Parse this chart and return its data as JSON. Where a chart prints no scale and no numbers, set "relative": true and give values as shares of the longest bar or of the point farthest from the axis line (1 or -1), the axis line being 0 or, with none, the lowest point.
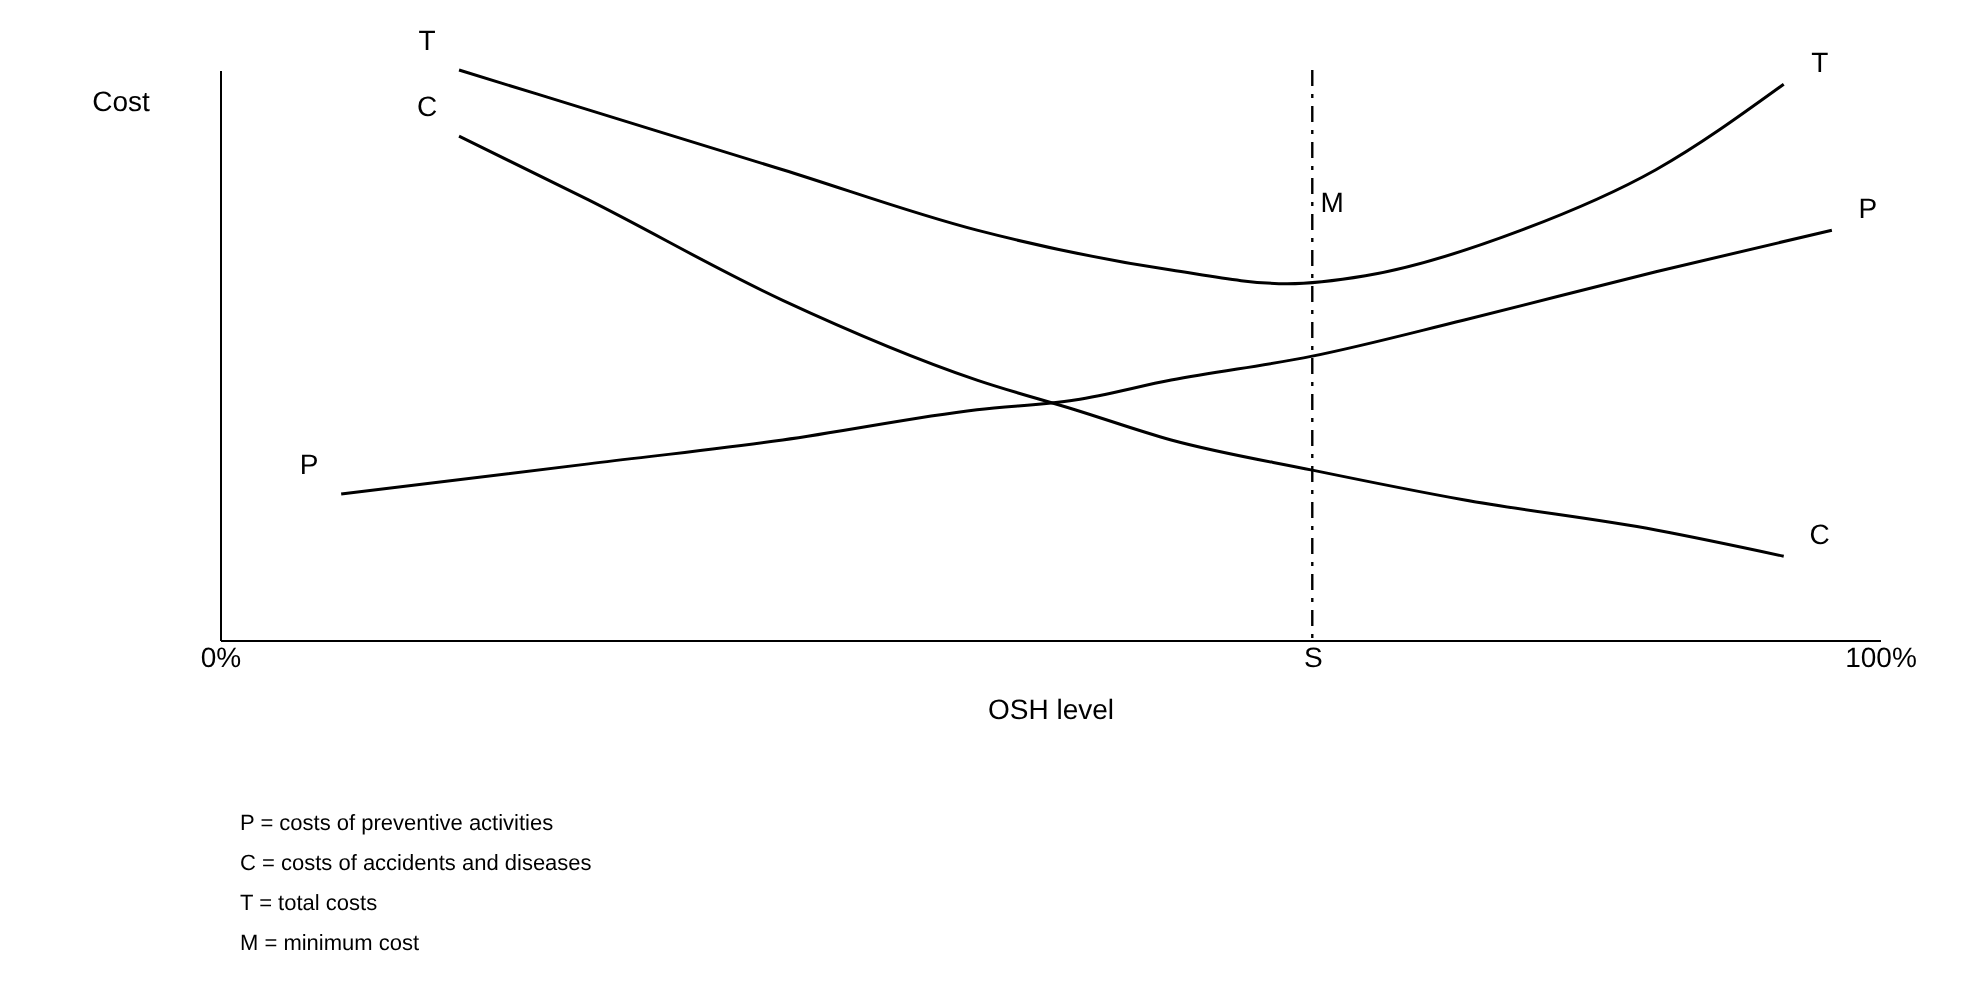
{
  "chart_data": {
    "type": "line",
    "relative": true,
    "xlabel": "OSH level",
    "ylabel": "Cost",
    "xlim": [
      0,
      100
    ],
    "xticks": [
      {
        "value": 0,
        "label": "0%"
      },
      {
        "value": 65.8,
        "label": "S"
      },
      {
        "value": 100,
        "label": "100%"
      }
    ],
    "series": [
      {
        "name": "T",
        "color": "#000000",
        "x": [
          14.4,
          22.2,
          33.9,
          45.6,
          57.3,
          64.3,
          69.0,
          78.4,
          86.5,
          94.2
        ],
        "values": [
          1,
          0.93,
          0.825,
          0.719,
          0.649,
          0.625,
          0.639,
          0.719,
          0.825,
          0.975
        ]
      },
      {
        "name": "C",
        "color": "#000000",
        "x": [
          14.4,
          22.2,
          33.9,
          45.6,
          51.5,
          57.3,
          65.8,
          74.9,
          86.5,
          94.2
        ],
        "values": [
          0.884,
          0.772,
          0.596,
          0.456,
          0.404,
          0.351,
          0.298,
          0.246,
          0.193,
          0.147
        ]
      },
      {
        "name": "P",
        "color": "#000000",
        "x": [
          7.3,
          22.2,
          33.9,
          45.6,
          51.5,
          57.3,
          65.8,
          74.9,
          86.5,
          97.1
        ],
        "values": [
          0.256,
          0.309,
          0.351,
          0.404,
          0.421,
          0.456,
          0.498,
          0.561,
          0.646,
          0.719
        ]
      }
    ],
    "ref_lines": [
      {
        "axis": "x",
        "value": 65.8,
        "line_style": "dashed",
        "color": "#000000"
      }
    ],
    "annotations": [
      {
        "text": "M",
        "x": 65.8,
        "y": 0.625
      },
      "P = costs of preventive activities",
      "C = costs of accidents and diseases",
      "T = total costs",
      "M = minimum cost"
    ],
    "grid": false,
    "legend": false,
    "line_style": "solid",
    "marker": "none"
  }
}
